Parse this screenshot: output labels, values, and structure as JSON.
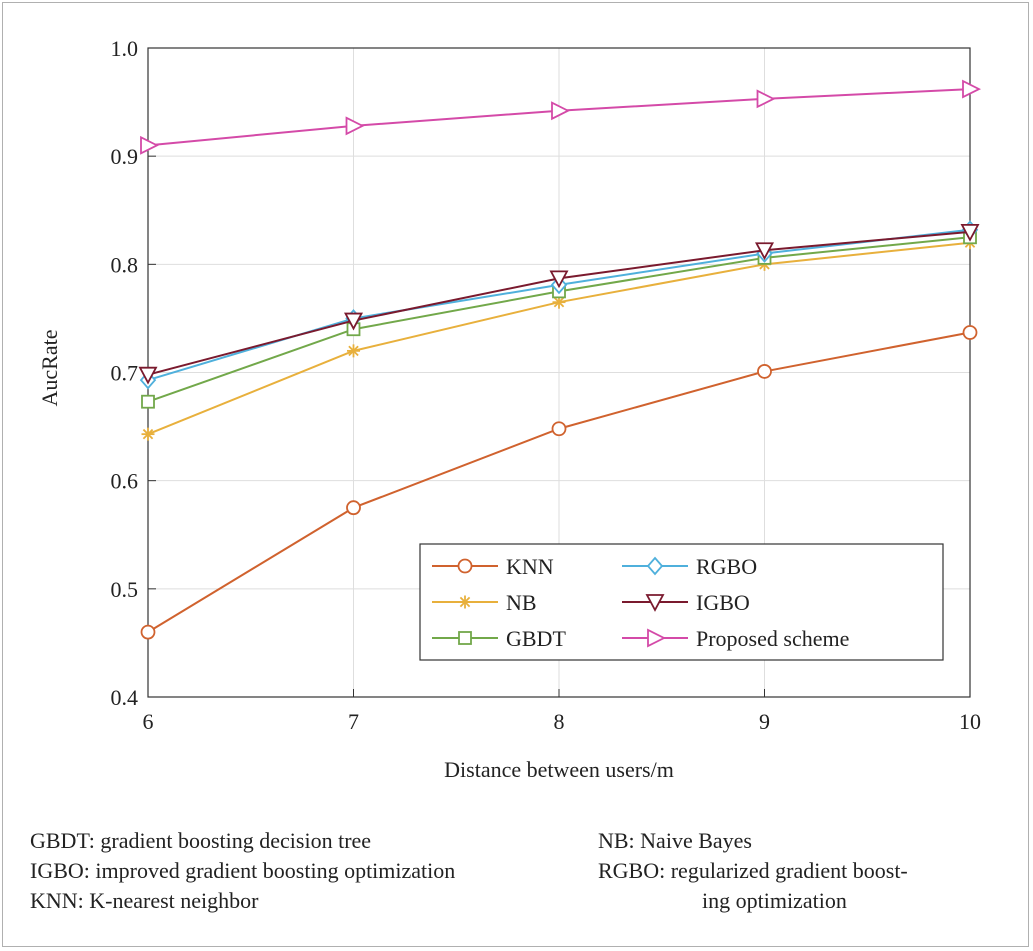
{
  "chart_data": {
    "type": "line",
    "xlabel": "Distance between users/m",
    "ylabel": "AucRate",
    "x": [
      6,
      7,
      8,
      9,
      10
    ],
    "xticks": [
      "6",
      "7",
      "8",
      "9",
      "10"
    ],
    "xlim": [
      6,
      10
    ],
    "ylim": [
      0.4,
      1.0
    ],
    "yticks": [
      "0.4",
      "0.5",
      "0.6",
      "0.7",
      "0.8",
      "0.9",
      "1.0"
    ],
    "grid": true,
    "legend_position": "bottom-right",
    "series": [
      {
        "name": "KNN",
        "values": [
          0.46,
          0.575,
          0.648,
          0.701,
          0.737
        ],
        "color": "#d0622e",
        "marker": "circle"
      },
      {
        "name": "NB",
        "values": [
          0.643,
          0.72,
          0.765,
          0.8,
          0.82
        ],
        "color": "#e8b03c",
        "marker": "asterisk"
      },
      {
        "name": "GBDT",
        "values": [
          0.673,
          0.74,
          0.775,
          0.806,
          0.825
        ],
        "color": "#72a84a",
        "marker": "square"
      },
      {
        "name": "RGBO",
        "values": [
          0.693,
          0.75,
          0.781,
          0.81,
          0.832
        ],
        "color": "#4fb0dc",
        "marker": "diamond"
      },
      {
        "name": "IGBO",
        "values": [
          0.698,
          0.748,
          0.787,
          0.813,
          0.83
        ],
        "color": "#7a1a2e",
        "marker": "triangle-down"
      },
      {
        "name": "Proposed scheme",
        "values": [
          0.91,
          0.928,
          0.942,
          0.953,
          0.962
        ],
        "color": "#d44aa8",
        "marker": "triangle-right"
      }
    ]
  },
  "footnotes": {
    "left": [
      "GBDT: gradient boosting decision tree",
      "IGBO: improved gradient boosting optimization",
      "KNN: K-nearest neighbor"
    ],
    "right": [
      "NB: Naive Bayes",
      "RGBO: regularized gradient boost-",
      "ing optimization"
    ]
  }
}
